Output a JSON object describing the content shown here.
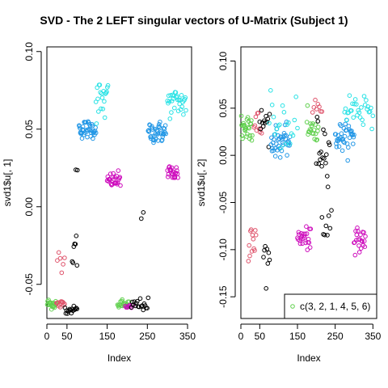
{
  "chart_title": "SVD - The 2 LEFT singular vectors of U-Matrix (Subject 1)",
  "colors": {
    "1": "#000000",
    "2": "#DF536B",
    "3": "#61D04F",
    "4": "#2297E6",
    "5": "#28E2E5",
    "6": "#CD0BBC"
  },
  "chart_data": [
    {
      "type": "scatter",
      "xlabel": "Index",
      "ylabel": "svd1$u[, 1]",
      "xlim": [
        0,
        360
      ],
      "ylim": [
        -0.072,
        0.103
      ],
      "xticks": [
        "0",
        "50",
        "150",
        "250",
        "350"
      ],
      "xtick_values": [
        0,
        50,
        150,
        250,
        350
      ],
      "yticks": [
        "-0.05",
        "0.00",
        "0.05",
        "0.10"
      ],
      "ytick_values": [
        -0.05,
        0,
        0.05,
        0.1
      ],
      "clusters": [
        {
          "color": "3",
          "xmin": 1,
          "xmax": 23,
          "y": -0.0625,
          "spread": 0.0035,
          "n": 22
        },
        {
          "color": "2",
          "xmin": 24,
          "xmax": 44,
          "y": -0.063,
          "spread": 0.003,
          "n": 12
        },
        {
          "color": "2",
          "xmin": 26,
          "xmax": 44,
          "y": -0.032,
          "spread": 0.008,
          "n": 6
        },
        {
          "color": "1",
          "xmin": 45,
          "xmax": 75,
          "y": -0.0665,
          "spread": 0.0025,
          "n": 16
        },
        {
          "color": "1",
          "xmin": 63,
          "xmax": 75,
          "y": -0.028,
          "spread": 0.012,
          "n": 7
        },
        {
          "color": "1",
          "xmin": 72,
          "xmax": 76,
          "y": 0.024,
          "spread": 0.001,
          "n": 2
        },
        {
          "color": "4",
          "xmin": 80,
          "xmax": 122,
          "y": 0.05,
          "spread": 0.006,
          "n": 40
        },
        {
          "color": "5",
          "xmin": 122,
          "xmax": 152,
          "y": 0.068,
          "spread": 0.014,
          "n": 20
        },
        {
          "color": "6",
          "xmin": 150,
          "xmax": 183,
          "y": 0.017,
          "spread": 0.005,
          "n": 25
        },
        {
          "color": "3",
          "xmin": 176,
          "xmax": 206,
          "y": -0.063,
          "spread": 0.003,
          "n": 22
        },
        {
          "color": "6",
          "xmin": 195,
          "xmax": 213,
          "y": -0.065,
          "spread": 0.002,
          "n": 8
        },
        {
          "color": "1",
          "xmin": 210,
          "xmax": 252,
          "y": -0.063,
          "spread": 0.004,
          "n": 18
        },
        {
          "color": "1",
          "xmin": 235,
          "xmax": 240,
          "y": -0.01,
          "spread": 0.012,
          "n": 2
        },
        {
          "color": "4",
          "xmin": 252,
          "xmax": 296,
          "y": 0.048,
          "spread": 0.007,
          "n": 40
        },
        {
          "color": "5",
          "xmin": 300,
          "xmax": 346,
          "y": 0.067,
          "spread": 0.009,
          "n": 30
        },
        {
          "color": "6",
          "xmin": 300,
          "xmax": 326,
          "y": 0.022,
          "spread": 0.006,
          "n": 22
        }
      ]
    },
    {
      "type": "scatter",
      "xlabel": "Index",
      "ylabel": "svd1$u[, 2]",
      "xlim": [
        0,
        360
      ],
      "ylim": [
        -0.173,
        0.115
      ],
      "xticks": [
        "0",
        "50",
        "150",
        "250",
        "350"
      ],
      "xtick_values": [
        0,
        50,
        150,
        250,
        350
      ],
      "yticks": [
        "-0.15",
        "-0.10",
        "-0.05",
        "0.00",
        "0.05",
        "0.10"
      ],
      "ytick_values": [
        -0.15,
        -0.1,
        -0.05,
        0,
        0.05,
        0.1
      ],
      "legend": {
        "position": "bottomright",
        "label": "c(3, 2, 1, 4, 5, 6)",
        "color": "3"
      },
      "clusters": [
        {
          "color": "3",
          "xmin": 1,
          "xmax": 30,
          "y": 0.03,
          "spread": 0.02,
          "n": 26
        },
        {
          "color": "2",
          "xmin": 20,
          "xmax": 40,
          "y": -0.085,
          "spread": 0.025,
          "n": 12
        },
        {
          "color": "2",
          "xmin": 35,
          "xmax": 55,
          "y": 0.03,
          "spread": 0.02,
          "n": 10
        },
        {
          "color": "1",
          "xmin": 50,
          "xmax": 76,
          "y": 0.035,
          "spread": 0.015,
          "n": 12
        },
        {
          "color": "1",
          "xmin": 60,
          "xmax": 76,
          "y": -0.11,
          "spread": 0.03,
          "n": 8
        },
        {
          "color": "4",
          "xmin": 80,
          "xmax": 130,
          "y": 0.015,
          "spread": 0.015,
          "n": 40
        },
        {
          "color": "5",
          "xmin": 75,
          "xmax": 150,
          "y": 0.035,
          "spread": 0.03,
          "n": 20
        },
        {
          "color": "6",
          "xmin": 150,
          "xmax": 185,
          "y": -0.088,
          "spread": 0.012,
          "n": 25
        },
        {
          "color": "3",
          "xmin": 175,
          "xmax": 205,
          "y": 0.025,
          "spread": 0.02,
          "n": 20
        },
        {
          "color": "2",
          "xmin": 190,
          "xmax": 215,
          "y": 0.05,
          "spread": 0.01,
          "n": 8
        },
        {
          "color": "1",
          "xmin": 200,
          "xmax": 235,
          "y": 0.01,
          "spread": 0.03,
          "n": 18
        },
        {
          "color": "1",
          "xmin": 215,
          "xmax": 240,
          "y": -0.075,
          "spread": 0.02,
          "n": 8
        },
        {
          "color": "4",
          "xmin": 250,
          "xmax": 300,
          "y": 0.02,
          "spread": 0.015,
          "n": 40
        },
        {
          "color": "5",
          "xmin": 275,
          "xmax": 350,
          "y": 0.05,
          "spread": 0.02,
          "n": 30
        },
        {
          "color": "6",
          "xmin": 300,
          "xmax": 330,
          "y": -0.09,
          "spread": 0.012,
          "n": 22
        }
      ]
    }
  ]
}
